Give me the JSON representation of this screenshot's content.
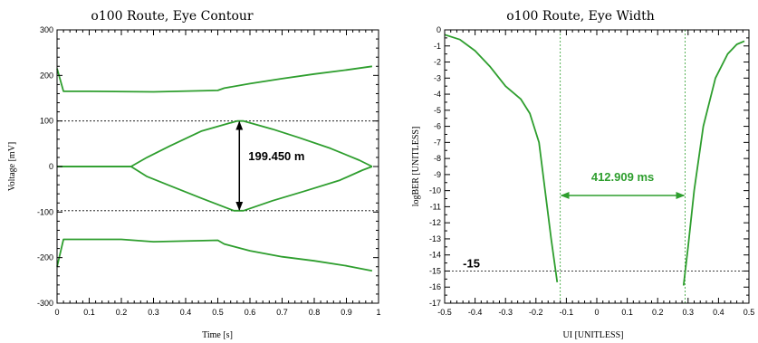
{
  "chart_data": [
    {
      "type": "line",
      "title": "o100 Route, Eye Contour",
      "xlabel": "Time [s]",
      "ylabel": "Voltage [mV]",
      "xlim": [
        0,
        1
      ],
      "ylim": [
        -300,
        300
      ],
      "xticks": [
        0,
        0.1,
        0.2,
        0.3,
        0.4,
        0.5,
        0.6,
        0.7,
        0.8,
        0.9,
        1
      ],
      "yticks": [
        -300,
        -200,
        -100,
        0,
        100,
        200,
        300
      ],
      "grid": false,
      "series": [
        {
          "values": [
            [
              0,
              215
            ],
            [
              0.02,
              165
            ],
            [
              0.1,
              165
            ],
            [
              0.3,
              164
            ],
            [
              0.5,
              167
            ],
            [
              0.52,
              172
            ],
            [
              0.6,
              182
            ],
            [
              0.7,
              193
            ],
            [
              0.8,
              203
            ],
            [
              0.9,
              212
            ],
            [
              0.98,
              220
            ]
          ]
        },
        {
          "values": [
            [
              0,
              -220
            ],
            [
              0.02,
              -160
            ],
            [
              0.1,
              -160
            ],
            [
              0.2,
              -160
            ],
            [
              0.3,
              -165
            ],
            [
              0.5,
              -162
            ],
            [
              0.52,
              -170
            ],
            [
              0.6,
              -185
            ],
            [
              0.7,
              -198
            ],
            [
              0.8,
              -207
            ],
            [
              0.9,
              -218
            ],
            [
              0.98,
              -229
            ]
          ]
        },
        {
          "values": [
            [
              0,
              0
            ],
            [
              0.23,
              0
            ],
            [
              0.28,
              20
            ],
            [
              0.35,
              45
            ],
            [
              0.45,
              78
            ],
            [
              0.56,
              100
            ],
            [
              0.58,
              100
            ],
            [
              0.67,
              82
            ],
            [
              0.75,
              64
            ],
            [
              0.85,
              40
            ],
            [
              0.94,
              14
            ],
            [
              0.98,
              0
            ]
          ]
        },
        {
          "values": [
            [
              0,
              0
            ],
            [
              0.23,
              0
            ],
            [
              0.28,
              -22
            ],
            [
              0.35,
              -42
            ],
            [
              0.45,
              -70
            ],
            [
              0.55,
              -97
            ],
            [
              0.58,
              -97
            ],
            [
              0.67,
              -75
            ],
            [
              0.77,
              -54
            ],
            [
              0.88,
              -30
            ],
            [
              0.95,
              -8
            ],
            [
              0.98,
              0
            ]
          ]
        }
      ],
      "hlines": [
        100,
        -97
      ],
      "annotation": {
        "text": "199.450 m",
        "x": 0.567,
        "y_from": -97,
        "y_to": 100
      }
    },
    {
      "type": "line",
      "title": "o100 Route, Eye Width",
      "xlabel": "UI [UNITLESS]",
      "ylabel": "logBER [UNITLESS]",
      "xlim": [
        -0.5,
        0.5
      ],
      "ylim": [
        -17,
        0
      ],
      "xticks": [
        -0.5,
        -0.4,
        -0.3,
        -0.2,
        -0.1,
        0,
        0.1,
        0.2,
        0.3,
        0.4,
        0.5
      ],
      "yticks": [
        0,
        -1,
        -2,
        -3,
        -4,
        -5,
        -6,
        -7,
        -8,
        -9,
        -10,
        -11,
        -12,
        -13,
        -14,
        -15,
        -16,
        -17
      ],
      "grid": false,
      "series": [
        {
          "values": [
            [
              -0.5,
              -0.3
            ],
            [
              -0.45,
              -0.6
            ],
            [
              -0.4,
              -1.3
            ],
            [
              -0.35,
              -2.3
            ],
            [
              -0.3,
              -3.5
            ],
            [
              -0.25,
              -4.3
            ],
            [
              -0.22,
              -5.2
            ],
            [
              -0.19,
              -7.0
            ],
            [
              -0.17,
              -10.0
            ],
            [
              -0.15,
              -13.0
            ],
            [
              -0.13,
              -15.7
            ]
          ]
        },
        {
          "values": [
            [
              0.285,
              -15.9
            ],
            [
              0.3,
              -13.5
            ],
            [
              0.32,
              -10.0
            ],
            [
              0.35,
              -6.0
            ],
            [
              0.39,
              -3.0
            ],
            [
              0.43,
              -1.5
            ],
            [
              0.46,
              -0.9
            ],
            [
              0.485,
              -0.7
            ]
          ]
        }
      ],
      "vlines": [
        -0.12,
        0.29
      ],
      "hline": {
        "y": -15,
        "label": "-15"
      },
      "annotation": {
        "text": "412.909 ms",
        "x_from": -0.12,
        "x_to": 0.29,
        "y": -10.3
      }
    }
  ]
}
